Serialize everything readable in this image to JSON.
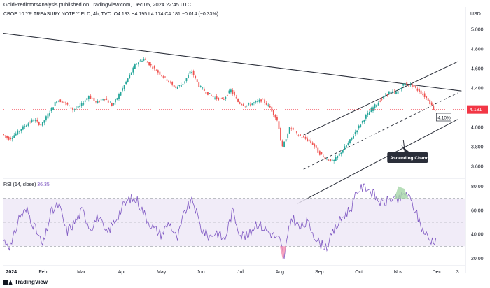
{
  "header": {
    "publisher": "GoldPredictorsAnalysis published on TradingView.com, Dec 05, 2024 22:45 UTC",
    "symbol": "CBOE 10 YR TREASURY NOTE YIELD, 4h, TVC",
    "ohlc": "O4.193 H4.195 L4.174 C4.181 −0.014 (−0.33%)",
    "currency": "USD"
  },
  "branding": {
    "logo_text": "TradingView"
  },
  "colors": {
    "up": "#26a69a",
    "down": "#ef5350",
    "trendline": "#2a2e39",
    "rsi": "#7e57c2",
    "rsi_band": "#ede7f6",
    "price_line": "#f23645",
    "callout": "#2a2e39",
    "overbought_fill": "#a5d6a7",
    "oversold_fill": "#f48fb1"
  },
  "chart_data": [
    {
      "type": "line",
      "title": "CBOE 10 YR TREASURY NOTE YIELD, 4h, TVC",
      "ylabel": "USD",
      "ylim": [
        3.5,
        5.1
      ],
      "y_ticks": [
        "5.000",
        "4.800",
        "4.600",
        "4.400",
        "4.200",
        "4.000",
        "3.800",
        "3.600"
      ],
      "x_ticks": [
        "2024",
        "Feb",
        "Mar",
        "Apr",
        "May",
        "Jun",
        "Jul",
        "Aug",
        "Sep",
        "Oct",
        "Nov",
        "Dec",
        "3"
      ],
      "x_tick_pos": [
        0.2,
        1.0,
        1.97,
        3.0,
        4.0,
        5.0,
        6.0,
        7.0,
        8.0,
        9.0,
        10.0,
        10.97,
        11.5
      ],
      "series": [
        {
          "x": [
            0.0,
            0.2,
            0.4,
            0.6,
            0.8,
            1.0,
            1.2,
            1.4,
            1.6,
            1.8,
            2.0,
            2.2,
            2.4,
            2.6,
            2.8,
            3.0,
            3.2,
            3.4,
            3.6,
            3.8,
            4.0,
            4.2,
            4.4,
            4.6,
            4.8,
            5.0,
            5.2,
            5.4,
            5.6,
            5.8,
            6.0,
            6.2,
            6.4,
            6.6,
            6.8,
            7.0,
            7.1,
            7.3,
            7.5,
            7.7,
            7.9,
            8.0,
            8.2,
            8.4,
            8.6,
            8.8,
            9.0,
            9.2,
            9.4,
            9.6,
            9.8,
            10.0,
            10.2,
            10.4,
            10.6,
            10.8,
            10.95
          ],
          "values": [
            3.93,
            3.88,
            3.95,
            4.02,
            4.08,
            4.02,
            4.15,
            4.28,
            4.25,
            4.18,
            4.22,
            4.32,
            4.25,
            4.3,
            4.22,
            4.35,
            4.5,
            4.65,
            4.7,
            4.62,
            4.55,
            4.48,
            4.4,
            4.45,
            4.58,
            4.42,
            4.35,
            4.3,
            4.28,
            4.38,
            4.25,
            4.22,
            4.25,
            4.28,
            4.2,
            4.05,
            3.78,
            4.0,
            3.92,
            3.88,
            3.82,
            3.75,
            3.68,
            3.65,
            3.75,
            3.85,
            3.98,
            4.1,
            4.2,
            4.28,
            4.36,
            4.35,
            4.45,
            4.42,
            4.36,
            4.28,
            4.18
          ]
        }
      ],
      "last_price": "4.181",
      "annotations": [
        "Ascending Channel",
        "4.10%"
      ]
    },
    {
      "type": "line",
      "title": "RSI (14, close)",
      "value_label": "36.35",
      "ylim": [
        15,
        85
      ],
      "y_ticks": [
        "80.00",
        "60.00",
        "40.00",
        "20.00"
      ],
      "levels": [
        70,
        50,
        30
      ],
      "series": [
        {
          "x": [
            0.0,
            0.2,
            0.4,
            0.6,
            0.8,
            1.0,
            1.2,
            1.4,
            1.6,
            1.8,
            2.0,
            2.2,
            2.4,
            2.6,
            2.8,
            3.0,
            3.2,
            3.4,
            3.6,
            3.8,
            4.0,
            4.2,
            4.4,
            4.6,
            4.8,
            5.0,
            5.2,
            5.4,
            5.6,
            5.8,
            6.0,
            6.2,
            6.4,
            6.6,
            6.8,
            7.0,
            7.1,
            7.3,
            7.5,
            7.7,
            7.9,
            8.0,
            8.2,
            8.4,
            8.6,
            8.8,
            9.0,
            9.2,
            9.4,
            9.6,
            9.8,
            10.0,
            10.2,
            10.4,
            10.6,
            10.8,
            10.95
          ],
          "values": [
            35,
            30,
            55,
            60,
            45,
            30,
            58,
            65,
            42,
            50,
            60,
            45,
            55,
            40,
            50,
            62,
            70,
            68,
            55,
            45,
            40,
            50,
            35,
            60,
            68,
            45,
            38,
            42,
            35,
            60,
            40,
            38,
            50,
            45,
            40,
            35,
            20,
            55,
            45,
            50,
            38,
            32,
            30,
            45,
            55,
            62,
            78,
            80,
            72,
            65,
            70,
            68,
            75,
            62,
            45,
            35,
            36
          ]
        }
      ]
    }
  ]
}
